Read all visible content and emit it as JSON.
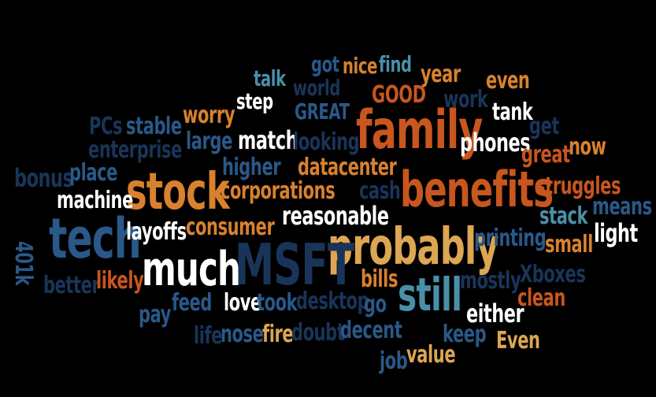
{
  "colors": {
    "background": "#000000",
    "orange_dark": "#C8561E",
    "orange": "#D8812E",
    "gold": "#DCA652",
    "white": "#FFFFFF",
    "navy": "#1A3459",
    "blue": "#2A5888",
    "teal": "#4A8FA8"
  },
  "words": {
    "family": "family",
    "benefits": "benefits",
    "stock": "stock",
    "probably": "probably",
    "tech": "tech",
    "much": "much",
    "msft": "MSFT",
    "still": "still",
    "good": "GOOD",
    "great_caps": "GREAT",
    "got": "got",
    "nice": "nice",
    "find": "find",
    "year": "year",
    "even": "even",
    "talk": "talk",
    "world": "world",
    "step": "step",
    "work": "work",
    "tank": "tank",
    "worry": "worry",
    "pcs": "PCs",
    "stable": "stable",
    "get": "get",
    "large": "large",
    "match": "match",
    "looking": "looking",
    "phones": "phones",
    "now": "now",
    "enterprise": "enterprise",
    "great": "great",
    "bonus": "bonus",
    "place": "place",
    "higher": "higher",
    "datacenter": "datacenter",
    "corporations": "corporations",
    "cash": "cash",
    "struggles": "struggles",
    "machine": "machine",
    "means": "means",
    "reasonable": "reasonable",
    "stack": "stack",
    "layoffs": "layoffs",
    "consumer": "consumer",
    "light": "light",
    "401k": "401k",
    "printing": "printing",
    "small": "small",
    "bills": "bills",
    "mostly": "mostly",
    "xboxes": "Xboxes",
    "better": "better",
    "likely": "likely",
    "clean": "clean",
    "feed": "feed",
    "love": "love",
    "took": "took",
    "desktop": "desktop",
    "go": "go",
    "either": "either",
    "pay": "pay",
    "life": "life",
    "nose": "nose",
    "fire": "fire",
    "doubt": "doubt",
    "decent": "decent",
    "keep": "keep",
    "even_cap": "Even",
    "job": "job",
    "value": "value"
  }
}
